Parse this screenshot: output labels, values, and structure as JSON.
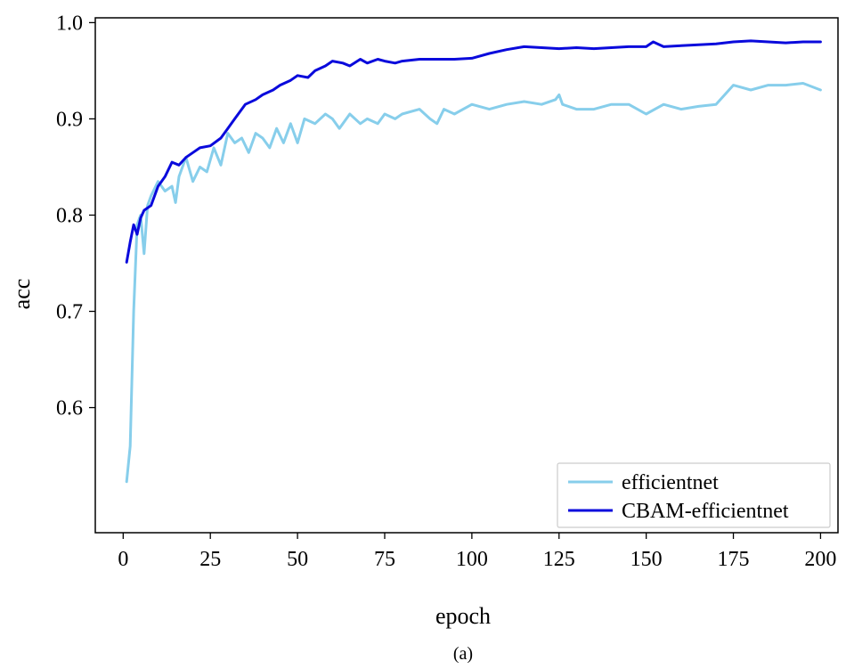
{
  "chart_data": {
    "type": "line",
    "xlabel": "epoch",
    "ylabel": "acc",
    "caption": "(a)",
    "xlim": [
      -8,
      205
    ],
    "ylim": [
      0.47,
      1.005
    ],
    "x_ticks": [
      0,
      25,
      50,
      75,
      100,
      125,
      150,
      175,
      200
    ],
    "x_tick_labels": [
      "0",
      "25",
      "50",
      "75",
      "100",
      "125",
      "150",
      "175",
      "200"
    ],
    "y_ticks": [
      0.6,
      0.7,
      0.8,
      0.9,
      1.0
    ],
    "y_tick_labels": [
      "0.6",
      "0.7",
      "0.8",
      "0.9",
      "1.0"
    ],
    "grid": false,
    "legend_position": "bottom-right",
    "colors": {
      "efficientnet": "#87ceeb",
      "CBAM-efficientnet": "#0a0adc"
    },
    "series": [
      {
        "name": "efficientnet",
        "color": "#87ceeb",
        "x": [
          1,
          2,
          3,
          4,
          5,
          6,
          7,
          8,
          10,
          12,
          14,
          15,
          16,
          18,
          20,
          22,
          24,
          26,
          28,
          30,
          32,
          34,
          36,
          38,
          40,
          42,
          44,
          46,
          48,
          50,
          52,
          55,
          58,
          60,
          62,
          65,
          68,
          70,
          73,
          75,
          78,
          80,
          85,
          88,
          90,
          92,
          95,
          100,
          105,
          110,
          115,
          120,
          124,
          125,
          126,
          130,
          135,
          140,
          145,
          150,
          155,
          160,
          165,
          170,
          175,
          180,
          185,
          190,
          195,
          200
        ],
        "y": [
          0.523,
          0.56,
          0.7,
          0.79,
          0.8,
          0.76,
          0.81,
          0.82,
          0.835,
          0.825,
          0.83,
          0.813,
          0.84,
          0.86,
          0.835,
          0.85,
          0.845,
          0.87,
          0.852,
          0.885,
          0.875,
          0.88,
          0.865,
          0.885,
          0.88,
          0.87,
          0.89,
          0.875,
          0.895,
          0.875,
          0.9,
          0.895,
          0.905,
          0.9,
          0.89,
          0.905,
          0.895,
          0.9,
          0.895,
          0.905,
          0.9,
          0.905,
          0.91,
          0.9,
          0.895,
          0.91,
          0.905,
          0.915,
          0.91,
          0.915,
          0.918,
          0.915,
          0.92,
          0.925,
          0.915,
          0.91,
          0.91,
          0.915,
          0.915,
          0.905,
          0.915,
          0.91,
          0.913,
          0.915,
          0.935,
          0.93,
          0.935,
          0.935,
          0.937,
          0.93
        ]
      },
      {
        "name": "CBAM-efficientnet",
        "color": "#0a0adc",
        "x": [
          1,
          2,
          3,
          4,
          5,
          6,
          8,
          10,
          12,
          14,
          16,
          18,
          20,
          22,
          25,
          28,
          30,
          32,
          35,
          38,
          40,
          43,
          45,
          48,
          50,
          53,
          55,
          58,
          60,
          63,
          65,
          68,
          70,
          73,
          75,
          78,
          80,
          85,
          90,
          95,
          100,
          105,
          110,
          115,
          120,
          125,
          130,
          135,
          140,
          145,
          150,
          152,
          155,
          160,
          165,
          170,
          175,
          180,
          185,
          190,
          195,
          200
        ],
        "y": [
          0.751,
          0.772,
          0.79,
          0.78,
          0.797,
          0.805,
          0.81,
          0.83,
          0.84,
          0.855,
          0.852,
          0.86,
          0.865,
          0.87,
          0.872,
          0.88,
          0.89,
          0.9,
          0.915,
          0.92,
          0.925,
          0.93,
          0.935,
          0.94,
          0.945,
          0.943,
          0.95,
          0.955,
          0.96,
          0.958,
          0.955,
          0.962,
          0.958,
          0.962,
          0.96,
          0.958,
          0.96,
          0.962,
          0.962,
          0.962,
          0.963,
          0.968,
          0.972,
          0.975,
          0.974,
          0.973,
          0.974,
          0.973,
          0.974,
          0.975,
          0.975,
          0.98,
          0.975,
          0.976,
          0.977,
          0.978,
          0.98,
          0.981,
          0.98,
          0.979,
          0.98,
          0.98
        ]
      }
    ]
  }
}
